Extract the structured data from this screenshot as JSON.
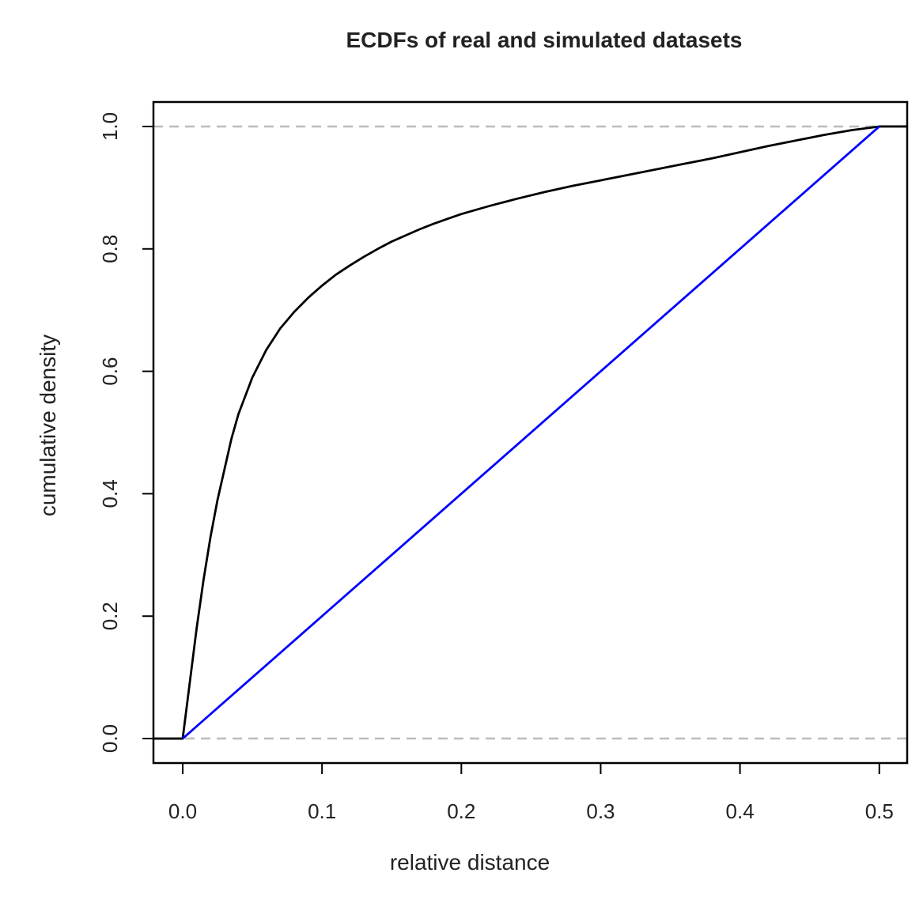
{
  "chart_data": {
    "type": "line",
    "title": "ECDFs of real and simulated datasets",
    "xlabel": "relative distance",
    "ylabel": "cumulative density",
    "xlim": [
      -0.021,
      0.52
    ],
    "ylim": [
      -0.04,
      1.04
    ],
    "x_ticks": [
      0.0,
      0.1,
      0.2,
      0.3,
      0.4,
      0.5
    ],
    "x_tick_labels": [
      "0.0",
      "0.1",
      "0.2",
      "0.3",
      "0.4",
      "0.5"
    ],
    "y_ticks": [
      0.0,
      0.2,
      0.4,
      0.6,
      0.8,
      1.0
    ],
    "y_tick_labels": [
      "0.0",
      "0.2",
      "0.4",
      "0.6",
      "0.8",
      "1.0"
    ],
    "grid": false,
    "reference_lines": [
      {
        "y": 0.0,
        "style": "dashed",
        "color": "#bbbbbb"
      },
      {
        "y": 1.0,
        "style": "dashed",
        "color": "#bbbbbb"
      }
    ],
    "series": [
      {
        "color": "#000000",
        "x": [
          -0.021,
          0.0,
          0.005,
          0.01,
          0.015,
          0.02,
          0.025,
          0.03,
          0.035,
          0.04,
          0.045,
          0.05,
          0.06,
          0.07,
          0.08,
          0.09,
          0.1,
          0.11,
          0.12,
          0.13,
          0.14,
          0.15,
          0.16,
          0.17,
          0.18,
          0.19,
          0.2,
          0.22,
          0.24,
          0.26,
          0.28,
          0.3,
          0.32,
          0.34,
          0.36,
          0.38,
          0.4,
          0.42,
          0.44,
          0.46,
          0.48,
          0.5,
          0.52
        ],
        "y": [
          0.0,
          0.0,
          0.09,
          0.18,
          0.26,
          0.33,
          0.39,
          0.44,
          0.49,
          0.53,
          0.56,
          0.59,
          0.635,
          0.67,
          0.697,
          0.72,
          0.74,
          0.758,
          0.773,
          0.787,
          0.8,
          0.812,
          0.822,
          0.832,
          0.841,
          0.849,
          0.857,
          0.87,
          0.882,
          0.893,
          0.903,
          0.912,
          0.921,
          0.93,
          0.939,
          0.948,
          0.958,
          0.968,
          0.977,
          0.986,
          0.994,
          1.0,
          1.0
        ]
      },
      {
        "color": "#0000ff",
        "x": [
          0.0,
          0.5
        ],
        "y": [
          0.0,
          1.0
        ]
      }
    ]
  }
}
